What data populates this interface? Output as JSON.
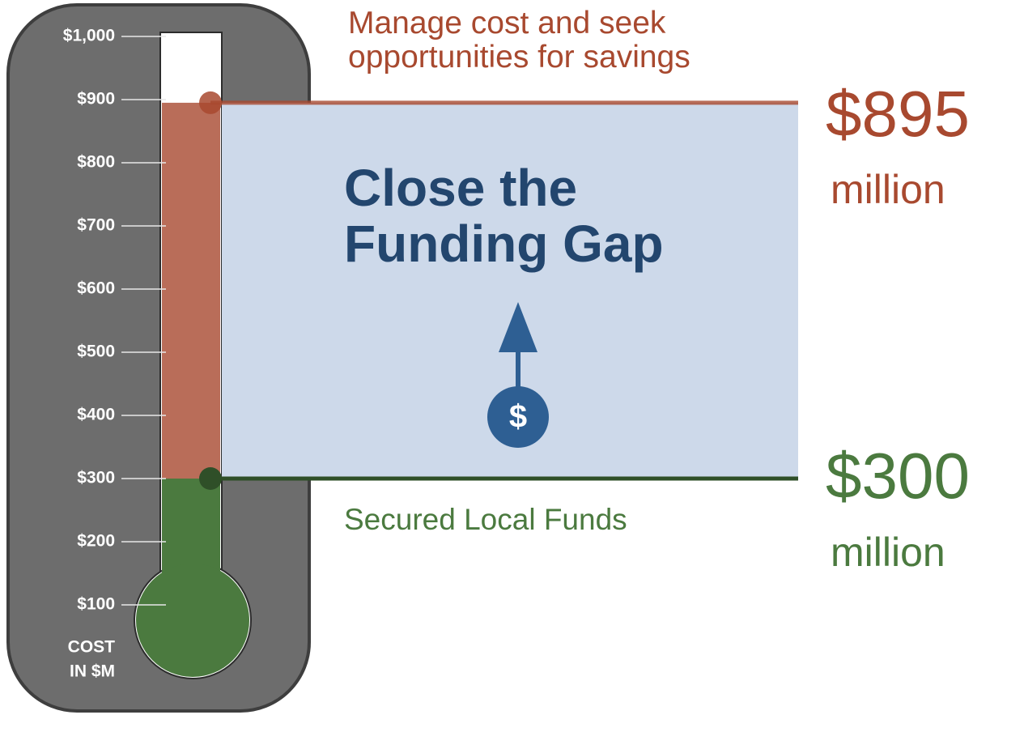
{
  "chart_data": {
    "type": "thermometer",
    "ylim": [
      0,
      1000
    ],
    "yticks": [
      {
        "value": 100,
        "label": "$100"
      },
      {
        "value": 200,
        "label": "$200"
      },
      {
        "value": 300,
        "label": "$300"
      },
      {
        "value": 400,
        "label": "$400"
      },
      {
        "value": 500,
        "label": "$500"
      },
      {
        "value": 600,
        "label": "$600"
      },
      {
        "value": 700,
        "label": "$700"
      },
      {
        "value": 800,
        "label": "$800"
      },
      {
        "value": 900,
        "label": "$900"
      },
      {
        "value": 1000,
        "label": "$1,000"
      }
    ],
    "y_label": [
      "COST",
      "IN $M"
    ],
    "gap_label": "Close the Funding Gap",
    "icon_label": "$",
    "series": [
      {
        "name": "Secured Local Funds",
        "color": "#4b7a3f",
        "values": [
          300
        ],
        "value_labels": [
          "$300"
        ],
        "unit": "million"
      },
      {
        "name": "Manage cost and seek opportunities for savings",
        "color": "#a8492f",
        "values": [
          895
        ],
        "value_labels": [
          "$895"
        ],
        "unit": "million"
      }
    ]
  }
}
